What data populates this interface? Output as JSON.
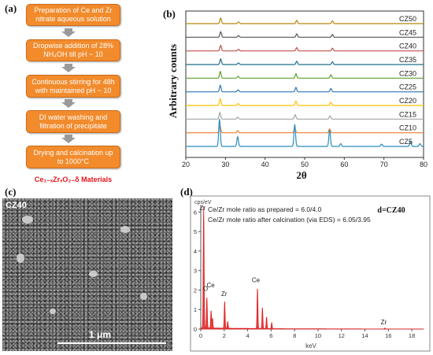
{
  "panels": {
    "a": "(a)",
    "b": "(b)",
    "c": "(c)",
    "d": "(d)"
  },
  "flowchart": {
    "steps": [
      "Preparation of Ce and Zr nitrate aqueous solution",
      "Dropwise addition of 28% NH₄OH till pH ~ 10",
      "Continuous stirring for 48h with maintained pH ~ 10",
      "DI water washing and filtration of precipitate",
      "Drying and calcination up to 1000°C"
    ],
    "material": "Ce₁₋ₓZrₓO₂₋δ Materials",
    "colors": {
      "box": "#f28b2c",
      "arrow": "#9a9a9a",
      "material": "#e0151b"
    }
  },
  "sem": {
    "tag": "CZ40",
    "scale_label": "1 μm"
  },
  "chart_data": [
    {
      "type": "line",
      "panel": "b",
      "ylabel": "Arbitrary counts",
      "xlabel": "2θ",
      "xlim": [
        20,
        80
      ],
      "x_ticks": [
        "20",
        "30",
        "40",
        "50",
        "60",
        "70",
        "80"
      ],
      "series": [
        {
          "name": "CZ50",
          "color": "#b8860b",
          "peaks": [
            [
              28.8,
              0.5
            ],
            [
              33.3,
              0.15
            ],
            [
              48.0,
              0.3
            ],
            [
              57.0,
              0.25
            ]
          ]
        },
        {
          "name": "CZ45",
          "color": "#555555",
          "peaks": [
            [
              28.8,
              0.5
            ],
            [
              33.3,
              0.15
            ],
            [
              48.0,
              0.3
            ],
            [
              57.0,
              0.25
            ]
          ]
        },
        {
          "name": "CZ40",
          "color": "#c0504d",
          "peaks": [
            [
              28.8,
              0.5
            ],
            [
              33.3,
              0.15
            ],
            [
              48.0,
              0.3
            ],
            [
              57.0,
              0.25
            ]
          ]
        },
        {
          "name": "CZ35",
          "color": "#1f6f8b",
          "peaks": [
            [
              28.8,
              0.5
            ],
            [
              33.3,
              0.15
            ],
            [
              48.0,
              0.3
            ],
            [
              57.0,
              0.25
            ]
          ]
        },
        {
          "name": "CZ30",
          "color": "#5aa02c",
          "peaks": [
            [
              28.7,
              0.6
            ],
            [
              33.2,
              0.18
            ],
            [
              47.8,
              0.4
            ],
            [
              56.6,
              0.3
            ]
          ]
        },
        {
          "name": "CZ25",
          "color": "#2e75b6",
          "peaks": [
            [
              28.7,
              0.6
            ],
            [
              33.2,
              0.18
            ],
            [
              47.8,
              0.4
            ],
            [
              56.6,
              0.3
            ]
          ]
        },
        {
          "name": "CZ20",
          "color": "#ffc000",
          "peaks": [
            [
              28.7,
              0.6
            ],
            [
              33.2,
              0.18
            ],
            [
              47.8,
              0.4
            ],
            [
              56.6,
              0.3
            ]
          ]
        },
        {
          "name": "CZ15",
          "color": "#a5a5a5",
          "peaks": [
            [
              28.6,
              0.6
            ],
            [
              33.1,
              0.18
            ],
            [
              47.6,
              0.4
            ],
            [
              56.4,
              0.3
            ]
          ]
        },
        {
          "name": "CZ10",
          "color": "#ed7d31",
          "peaks": [
            [
              28.6,
              0.65
            ],
            [
              33.1,
              0.2
            ],
            [
              47.5,
              0.45
            ],
            [
              56.3,
              0.35
            ]
          ]
        },
        {
          "name": "CZ5",
          "color": "#2b8cbe",
          "peaks": [
            [
              28.5,
              1.0
            ],
            [
              33.1,
              0.35
            ],
            [
              47.5,
              0.8
            ],
            [
              56.3,
              0.6
            ],
            [
              59.1,
              0.1
            ],
            [
              69.4,
              0.08
            ],
            [
              76.7,
              0.18
            ],
            [
              79.1,
              0.1
            ]
          ]
        }
      ]
    },
    {
      "type": "bar",
      "panel": "d",
      "ylabel": "cps/eV",
      "xlabel": "keV",
      "xlim": [
        0,
        19
      ],
      "ylim": [
        0,
        6.3
      ],
      "x_ticks": [
        "0",
        "2",
        "4",
        "6",
        "8",
        "10",
        "12",
        "14",
        "16",
        "18"
      ],
      "y_ticks": [
        "0",
        "1",
        "2",
        "3",
        "4",
        "5",
        "6"
      ],
      "annotation_lines": [
        "Ce/Zr mole ratio as prepared = 6.0/4.0",
        "Ce/Zr mole ratio after calcination (via EDS) = 6.05/3.95"
      ],
      "sample_tag": "d=CZ40",
      "color": "#e02020",
      "peaks": [
        [
          0.25,
          6.3
        ],
        [
          0.52,
          1.6
        ],
        [
          0.88,
          0.9
        ],
        [
          1.0,
          0.5
        ],
        [
          2.04,
          1.4
        ],
        [
          2.3,
          0.35
        ],
        [
          4.84,
          2.1
        ],
        [
          5.26,
          1.1
        ],
        [
          5.61,
          0.6
        ],
        [
          6.05,
          0.3
        ],
        [
          15.7,
          0.05
        ]
      ],
      "element_labels": [
        {
          "text": "Zr",
          "x": 0.15,
          "y": 6.1
        },
        {
          "text": "O",
          "x": 0.4,
          "y": 1.95
        },
        {
          "text": "Ce",
          "x": 0.85,
          "y": 2.15
        },
        {
          "text": "Zr",
          "x": 2.0,
          "y": 1.7
        },
        {
          "text": "Ce",
          "x": 4.7,
          "y": 2.4
        },
        {
          "text": "Zr",
          "x": 15.6,
          "y": 0.25
        }
      ]
    }
  ]
}
